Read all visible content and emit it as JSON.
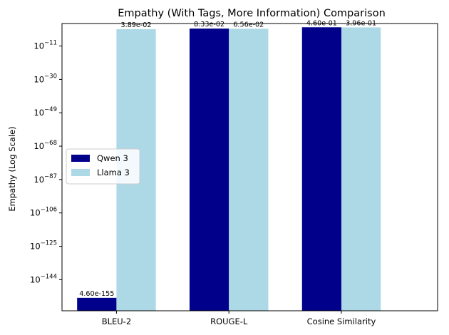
{
  "chart_data": {
    "type": "bar",
    "title": "Empathy (With Tags, More Information) Comparison",
    "xlabel": "",
    "ylabel": "Empathy (Log Scale)",
    "yscale": "log",
    "categories": [
      "BLEU-2",
      "ROUGE-L",
      "Cosine Similarity"
    ],
    "series": [
      {
        "name": "Qwen 3",
        "color": "#00008b",
        "values": [
          4.6e-155,
          0.0833,
          0.46
        ],
        "labels": [
          "4.60e-155",
          "8.33e-02",
          "4.60e-01"
        ]
      },
      {
        "name": "Llama 3",
        "color": "#add8e6",
        "values": [
          0.0389,
          0.0656,
          0.396
        ],
        "labels": [
          "3.89e-02",
          "6.56e-02",
          "3.96e-01"
        ]
      }
    ],
    "yticks": [
      {
        "exp": -144,
        "label": "10",
        "sup": "−144"
      },
      {
        "exp": -125,
        "label": "10",
        "sup": "−125"
      },
      {
        "exp": -106,
        "label": "10",
        "sup": "−106"
      },
      {
        "exp": -87,
        "label": "10",
        "sup": "−87"
      },
      {
        "exp": -68,
        "label": "10",
        "sup": "−68"
      },
      {
        "exp": -49,
        "label": "10",
        "sup": "−49"
      },
      {
        "exp": -30,
        "label": "10",
        "sup": "−30"
      },
      {
        "exp": -11,
        "label": "10",
        "sup": "−11"
      }
    ],
    "ylim_log10": [
      -161.7,
      1.8
    ],
    "legend_position": "center-left",
    "grid": false
  }
}
